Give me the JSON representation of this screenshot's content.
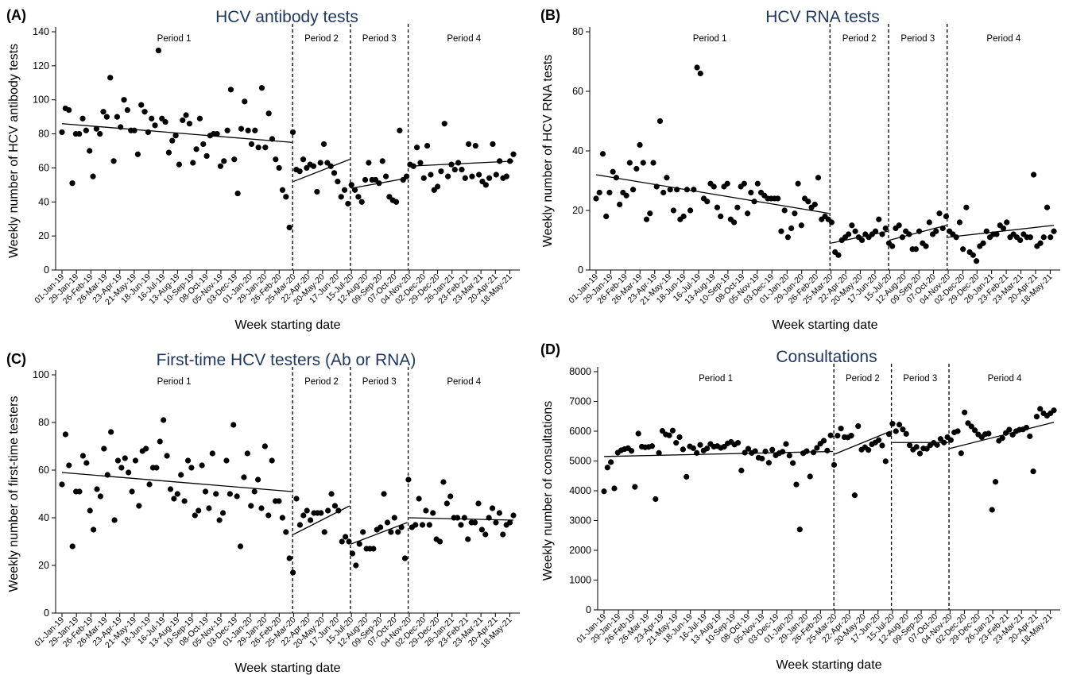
{
  "figure": {
    "x_dates": [
      "01-Jan-19",
      "29-Jan-19",
      "26-Feb-19",
      "26-Mar-19",
      "23-Apr-19",
      "21-May-19",
      "18-Jun-19",
      "16-Jul-19",
      "13-Aug-19",
      "10-Sep-19",
      "08-Oct-19",
      "05-Nov-19",
      "03-Dec-19",
      "01-Jan-20",
      "29-Jan-20",
      "26-Feb-20",
      "25-Mar-20",
      "22-Apr-20",
      "20-May-20",
      "17-Jun-20",
      "15-Jul-20",
      "12-Aug-20",
      "09-Sep-20",
      "07-Oct-20",
      "04-Nov-20",
      "02-Dec-20",
      "29-Dec-20",
      "26-Jan-21",
      "23-Feb-21",
      "23-Mar-21",
      "20-Apr-21",
      "18-May-21"
    ],
    "x_label": "Week starting date",
    "period_labels": [
      "Period 1",
      "Period 2",
      "Period 3",
      "Period 4"
    ],
    "period_boundaries": [
      "23-Mar-20",
      "13-Jul-20",
      "02-Nov-20"
    ],
    "date_range": [
      "01-Jan-19",
      "25-May-21"
    ]
  },
  "chart_data": [
    {
      "type": "scatter",
      "panel": "(A)",
      "title": "HCV antibody tests",
      "ylabel": "Weekly number of HCV antibody tests",
      "ylim": [
        0,
        140
      ],
      "yticks": [
        0,
        20,
        40,
        60,
        80,
        100,
        120,
        140
      ],
      "series": [
        {
          "name": "",
          "values": [
            81,
            95,
            94,
            51,
            80,
            80,
            89,
            82,
            70,
            55,
            83,
            80,
            93,
            90,
            113,
            64,
            90,
            84,
            100,
            94,
            82,
            82,
            68,
            97,
            93,
            81,
            89,
            85,
            129,
            89,
            87,
            69,
            76,
            79,
            62,
            88,
            91,
            86,
            63,
            71,
            89,
            74,
            67,
            79,
            80,
            80,
            61,
            64,
            82,
            106,
            65,
            45,
            83,
            99,
            82,
            74,
            82,
            72,
            107,
            72,
            92,
            77,
            65,
            60,
            47,
            43,
            25,
            81,
            59,
            58,
            65,
            60,
            62,
            61,
            46,
            63,
            74,
            63,
            61,
            57,
            52,
            43,
            47,
            39,
            50,
            47,
            43,
            40,
            53,
            63,
            53,
            53,
            51,
            64,
            55,
            43,
            41,
            40,
            82,
            53,
            55,
            62,
            61,
            72,
            63,
            54,
            73,
            56,
            47,
            49,
            58,
            86,
            55,
            62,
            59,
            63,
            59,
            54,
            74,
            55,
            73,
            56,
            52,
            50,
            54,
            74,
            56,
            64,
            54,
            55,
            64,
            68
          ]
        }
      ],
      "trend_lines": [
        {
          "period": "Period 1",
          "y_start": 86,
          "y_end": 75
        },
        {
          "period": "Period 2",
          "y_start": 52,
          "y_end": 65
        },
        {
          "period": "Period 3",
          "y_start": 48,
          "y_end": 54
        },
        {
          "period": "Period 4",
          "y_start": 61,
          "y_end": 64
        }
      ]
    },
    {
      "type": "scatter",
      "panel": "(B)",
      "title": "HCV RNA tests",
      "ylabel": "Weekly number of HCV RNA tests",
      "ylim": [
        0,
        80
      ],
      "yticks": [
        0,
        20,
        40,
        60,
        80
      ],
      "series": [
        {
          "name": "",
          "values": [
            24,
            26,
            39,
            18,
            26,
            33,
            31,
            22,
            26,
            25,
            36,
            27,
            34,
            42,
            36,
            17,
            19,
            36,
            28,
            50,
            26,
            31,
            27,
            20,
            27,
            17,
            18,
            27,
            20,
            27,
            68,
            66,
            24,
            23,
            29,
            28,
            21,
            18,
            28,
            29,
            17,
            16,
            21,
            28,
            29,
            19,
            26,
            23,
            29,
            26,
            25,
            24,
            24,
            24,
            24,
            13,
            20,
            11,
            14,
            19,
            29,
            15,
            24,
            23,
            21,
            22,
            31,
            17,
            18,
            17,
            16,
            6,
            5,
            10,
            11,
            12,
            15,
            13,
            11,
            10,
            12,
            11,
            12,
            13,
            17,
            12,
            14,
            9,
            8,
            14,
            15,
            11,
            13,
            12,
            7,
            7,
            13,
            9,
            8,
            16,
            12,
            13,
            19,
            14,
            18,
            13,
            12,
            11,
            16,
            7,
            21,
            6,
            5,
            3,
            8,
            9,
            13,
            11,
            12,
            12,
            15,
            14,
            16,
            11,
            12,
            11,
            10,
            12,
            11,
            11,
            32,
            8,
            9,
            11,
            21,
            11,
            13
          ]
        }
      ],
      "trend_lines": [
        {
          "period": "Period 1",
          "y_start": 32,
          "y_end": 19
        },
        {
          "period": "Period 2",
          "y_start": 9,
          "y_end": 13
        },
        {
          "period": "Period 3",
          "y_start": 10,
          "y_end": 15
        },
        {
          "period": "Period 4",
          "y_start": 11,
          "y_end": 15
        }
      ]
    },
    {
      "type": "scatter",
      "panel": "(C)",
      "title": "First-time HCV testers (Ab or RNA)",
      "ylabel": "Weekly number of first-time testers",
      "ylim": [
        0,
        100
      ],
      "yticks": [
        0,
        20,
        40,
        60,
        80,
        100
      ],
      "series": [
        {
          "name": "",
          "values": [
            54,
            75,
            62,
            28,
            51,
            51,
            66,
            63,
            43,
            35,
            52,
            49,
            69,
            58,
            76,
            39,
            64,
            61,
            65,
            59,
            51,
            64,
            45,
            68,
            69,
            54,
            61,
            61,
            72,
            81,
            66,
            52,
            48,
            50,
            58,
            47,
            64,
            61,
            41,
            43,
            62,
            51,
            44,
            67,
            50,
            39,
            42,
            64,
            50,
            79,
            49,
            28,
            57,
            67,
            45,
            51,
            56,
            44,
            70,
            41,
            64,
            47,
            47,
            40,
            34,
            23,
            17,
            48,
            37,
            41,
            43,
            39,
            42,
            42,
            42,
            34,
            43,
            50,
            45,
            43,
            30,
            32,
            30,
            25,
            20,
            29,
            34,
            27,
            27,
            27,
            35,
            36,
            50,
            38,
            34,
            40,
            34,
            36,
            23,
            56,
            36,
            37,
            48,
            37,
            43,
            37,
            42,
            31,
            30,
            55,
            46,
            49,
            40,
            40,
            37,
            40,
            31,
            38,
            38,
            46,
            35,
            33,
            40,
            44,
            38,
            42,
            33,
            37,
            38,
            41
          ]
        }
      ],
      "trend_lines": [
        {
          "period": "Period 1",
          "y_start": 59,
          "y_end": 51
        },
        {
          "period": "Period 2",
          "y_start": 33,
          "y_end": 45
        },
        {
          "period": "Period 3",
          "y_start": 29,
          "y_end": 38
        },
        {
          "period": "Period 4",
          "y_start": 40,
          "y_end": 39
        }
      ]
    },
    {
      "type": "scatter",
      "panel": "(D)",
      "title": "Consultations",
      "ylabel": "Weekly number of consultations",
      "ylim": [
        0,
        8000
      ],
      "yticks": [
        0,
        1000,
        2000,
        3000,
        4000,
        5000,
        6000,
        7000,
        8000
      ],
      "series": [
        {
          "name": "",
          "values": [
            3980,
            4780,
            4960,
            4080,
            5280,
            5360,
            5400,
            5430,
            5340,
            4130,
            5920,
            5480,
            5460,
            5470,
            5500,
            3720,
            5270,
            6010,
            5890,
            5860,
            6020,
            5610,
            5800,
            5390,
            4470,
            5490,
            5430,
            5270,
            5540,
            5350,
            5420,
            5570,
            5480,
            5500,
            5440,
            5480,
            5590,
            5640,
            5550,
            5610,
            4680,
            5280,
            5410,
            5270,
            5330,
            5110,
            5080,
            5320,
            4940,
            5380,
            5190,
            5260,
            5310,
            5570,
            5180,
            4930,
            4210,
            2700,
            5260,
            5330,
            4480,
            5290,
            5440,
            5580,
            5680,
            5350,
            5860,
            4870,
            5850,
            6090,
            5800,
            5790,
            5850,
            3850,
            6170,
            5380,
            5460,
            5370,
            5560,
            5620,
            5700,
            5520,
            4990,
            5900,
            6250,
            6000,
            6220,
            6060,
            5910,
            5530,
            5380,
            5470,
            5250,
            5420,
            5410,
            5530,
            5610,
            5540,
            5740,
            5620,
            5800,
            5700,
            5960,
            6000,
            5260,
            6630,
            6270,
            6160,
            6030,
            5890,
            5800,
            5900,
            5920,
            3360,
            4300,
            5680,
            5770,
            5940,
            6050,
            5880,
            6000,
            6050,
            6060,
            6120,
            5830,
            4650,
            6490,
            6750,
            6600,
            6520,
            6600,
            6700
          ]
        }
      ],
      "trend_lines": [
        {
          "period": "Period 1",
          "y_start": 5150,
          "y_end": 5320
        },
        {
          "period": "Period 2",
          "y_start": 5230,
          "y_end": 6000
        },
        {
          "period": "Period 3",
          "y_start": 5620,
          "y_end": 5620
        },
        {
          "period": "Period 4",
          "y_start": 5420,
          "y_end": 6300
        }
      ]
    }
  ]
}
